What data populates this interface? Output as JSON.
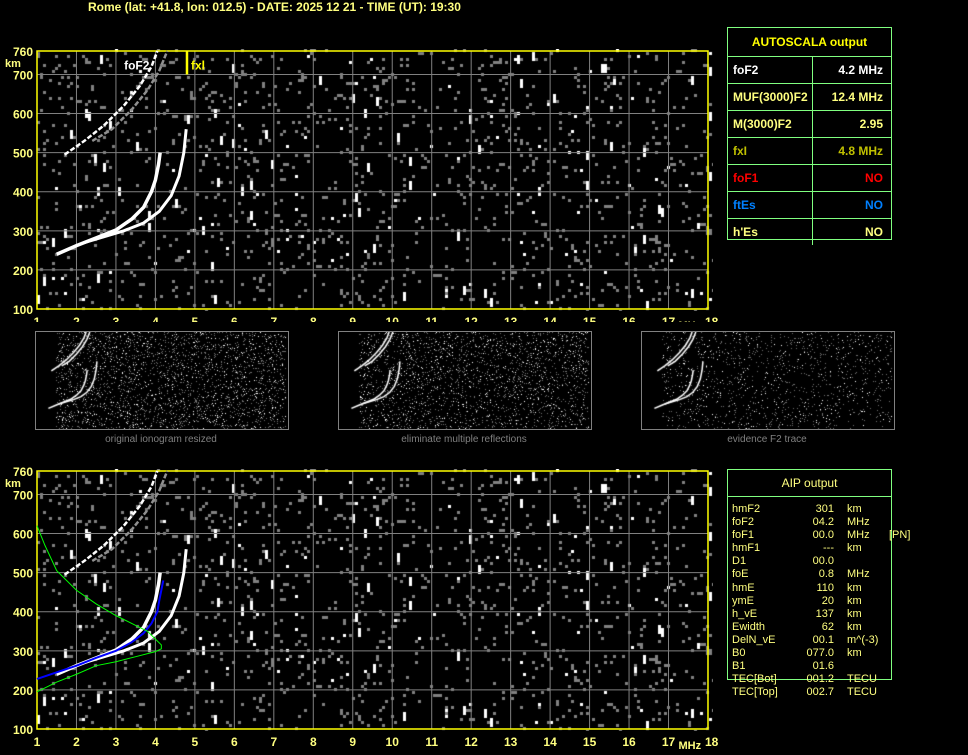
{
  "header": {
    "title": "Rome (lat: +41.8, lon: 012.5) - DATE: 2025 12 21 - TIME (UT): 19:30"
  },
  "colors": {
    "axis": "#ffff00",
    "label": "#ffff80",
    "grid": "#808080",
    "trace": "#ffffff",
    "table_border": "#80ff80",
    "foF1": "#ff0000",
    "ftEs": "#0080ff",
    "fxl": "#c0c000",
    "profile": "#00ff00",
    "aip_fit": "#0000ff"
  },
  "chart_data": [
    {
      "type": "scatter",
      "title": "",
      "xlabel": "MHz",
      "ylabel": "km",
      "xlim": [
        1,
        18
      ],
      "ylim": [
        100,
        760
      ],
      "xticks": [
        "1",
        "2",
        "3",
        "4",
        "5",
        "6",
        "7",
        "8",
        "9",
        "10",
        "11",
        "12",
        "13",
        "14",
        "15",
        "16",
        "17",
        "18"
      ],
      "yticks": [
        "100",
        "200",
        "300",
        "400",
        "500",
        "600",
        "700",
        "760"
      ],
      "grid": true,
      "annotations": [
        {
          "text": "foF2",
          "x": 3.9,
          "y": 720
        },
        {
          "text": "fxl",
          "x": 4.8,
          "y": 720
        }
      ],
      "fxl_line": {
        "x": 4.8,
        "y": [
          700,
          760
        ]
      },
      "series": [
        {
          "kind": "o-trace",
          "points": [
            [
              1.5,
              240
            ],
            [
              2,
              262
            ],
            [
              2.5,
              282
            ],
            [
              3,
              302
            ],
            [
              3.4,
              330
            ],
            [
              3.7,
              360
            ],
            [
              3.9,
              400
            ],
            [
              4.0,
              430
            ],
            [
              4.08,
              470
            ],
            [
              4.12,
              500
            ]
          ]
        },
        {
          "kind": "x-trace",
          "points": [
            [
              2.2,
              270
            ],
            [
              2.7,
              285
            ],
            [
              3.2,
              300
            ],
            [
              3.7,
              320
            ],
            [
              4.1,
              350
            ],
            [
              4.4,
              390
            ],
            [
              4.6,
              440
            ],
            [
              4.72,
              500
            ],
            [
              4.78,
              560
            ]
          ]
        },
        {
          "kind": "second-hop-o",
          "points": [
            [
              1.7,
              495
            ],
            [
              2.2,
              530
            ],
            [
              2.7,
              570
            ],
            [
              3.2,
              620
            ],
            [
              3.6,
              670
            ],
            [
              3.9,
              720
            ],
            [
              4.05,
              760
            ]
          ]
        },
        {
          "kind": "second-hop-x",
          "points": [
            [
              2.4,
              530
            ],
            [
              2.9,
              560
            ],
            [
              3.4,
              610
            ],
            [
              3.8,
              660
            ],
            [
              4.1,
              710
            ],
            [
              4.3,
              760
            ]
          ]
        }
      ]
    },
    {
      "type": "line",
      "title": "",
      "xlabel": "MHz",
      "ylabel": "km",
      "xlim": [
        1,
        18
      ],
      "ylim": [
        100,
        760
      ],
      "xticks": [
        "1",
        "2",
        "3",
        "4",
        "5",
        "6",
        "7",
        "8",
        "9",
        "10",
        "11",
        "12",
        "13",
        "14",
        "15",
        "16",
        "17",
        "18"
      ],
      "yticks": [
        "100",
        "200",
        "300",
        "400",
        "500",
        "600",
        "700",
        "760"
      ],
      "grid": true,
      "series": [
        {
          "kind": "o-trace",
          "points": [
            [
              1.5,
              240
            ],
            [
              2,
              262
            ],
            [
              2.5,
              282
            ],
            [
              3,
              302
            ],
            [
              3.4,
              330
            ],
            [
              3.7,
              360
            ],
            [
              3.9,
              400
            ],
            [
              4.0,
              430
            ],
            [
              4.08,
              470
            ],
            [
              4.12,
              500
            ]
          ]
        },
        {
          "kind": "x-trace",
          "points": [
            [
              2.2,
              270
            ],
            [
              2.7,
              285
            ],
            [
              3.2,
              300
            ],
            [
              3.7,
              320
            ],
            [
              4.1,
              350
            ],
            [
              4.4,
              390
            ],
            [
              4.6,
              440
            ],
            [
              4.72,
              500
            ],
            [
              4.78,
              560
            ]
          ]
        },
        {
          "kind": "second-hop-o",
          "points": [
            [
              1.7,
              495
            ],
            [
              2.2,
              530
            ],
            [
              2.7,
              570
            ],
            [
              3.2,
              620
            ],
            [
              3.6,
              670
            ],
            [
              3.9,
              720
            ],
            [
              4.05,
              760
            ]
          ]
        },
        {
          "kind": "second-hop-x",
          "points": [
            [
              2.4,
              530
            ],
            [
              2.9,
              560
            ],
            [
              3.4,
              610
            ],
            [
              3.8,
              660
            ],
            [
              4.1,
              710
            ],
            [
              4.3,
              760
            ]
          ]
        },
        {
          "kind": "aip-fit",
          "points": [
            [
              1.0,
              228
            ],
            [
              1.5,
              245
            ],
            [
              2,
              262
            ],
            [
              2.5,
              282
            ],
            [
              3,
              300
            ],
            [
              3.4,
              322
            ],
            [
              3.7,
              345
            ],
            [
              3.9,
              370
            ],
            [
              4.05,
              400
            ],
            [
              4.1,
              430
            ],
            [
              4.2,
              480
            ]
          ]
        },
        {
          "kind": "electron-density-profile",
          "points": [
            [
              1.0,
              620
            ],
            [
              1.2,
              570
            ],
            [
              1.5,
              505
            ],
            [
              2,
              455
            ],
            [
              2.5,
              420
            ],
            [
              3,
              390
            ],
            [
              3.5,
              365
            ],
            [
              3.8,
              350
            ],
            [
              4.0,
              330
            ],
            [
              4.15,
              315
            ],
            [
              4.15,
              305
            ],
            [
              4.0,
              298
            ],
            [
              3.5,
              285
            ],
            [
              3,
              272
            ],
            [
              2.5,
              262
            ],
            [
              2,
              240
            ],
            [
              1.5,
              220
            ],
            [
              1.2,
              205
            ],
            [
              1.0,
              195
            ]
          ]
        }
      ]
    }
  ],
  "thumbnails": [
    {
      "label": "original ionogram resized"
    },
    {
      "label": "eliminate multiple reflections"
    },
    {
      "label": "evidence F2 trace"
    }
  ],
  "autoscala": {
    "title": "AUTOSCALA output",
    "rows": [
      {
        "key": "foF2",
        "value": "4.2 MHz",
        "color": "#ffffff"
      },
      {
        "key": "MUF(3000)F2",
        "value": "12.4 MHz",
        "color": "#ffff80"
      },
      {
        "key": "M(3000)F2",
        "value": "2.95",
        "color": "#ffff80"
      },
      {
        "key": "fxI",
        "value": "4.8 MHz",
        "color": "#c0c000"
      },
      {
        "key": "foF1",
        "value": "NO",
        "color": "#ff0000"
      },
      {
        "key": "ftEs",
        "value": "NO",
        "color": "#0080ff"
      },
      {
        "key": "h'Es",
        "value": "NO",
        "color": "#ffff80"
      }
    ]
  },
  "aip": {
    "title": "AIP output",
    "rows": [
      [
        "hmF2",
        "301",
        "km",
        ""
      ],
      [
        "foF2",
        "04.2",
        "MHz",
        ""
      ],
      [
        "foF1",
        "00.0",
        "MHz",
        "[PN]"
      ],
      [
        "hmF1",
        "---",
        "km",
        ""
      ],
      [
        "D1",
        "00.0",
        "",
        ""
      ],
      [
        "foE",
        "0.8",
        "MHz",
        ""
      ],
      [
        "hmE",
        "110",
        "km",
        ""
      ],
      [
        "ymE",
        "20",
        "km",
        ""
      ],
      [
        "h_vE",
        "137",
        "km",
        ""
      ],
      [
        "Ewidth",
        "62",
        "km",
        ""
      ],
      [
        "DelN_vE",
        "00.1",
        "m^(-3)",
        ""
      ],
      [
        "B0",
        "077.0",
        "km",
        ""
      ],
      [
        "B1",
        "01.6",
        "",
        ""
      ],
      [
        "TEC[Bot]",
        "001.2",
        "TECU",
        ""
      ],
      [
        "TEC[Top]",
        "002.7",
        "TECU",
        ""
      ]
    ]
  }
}
